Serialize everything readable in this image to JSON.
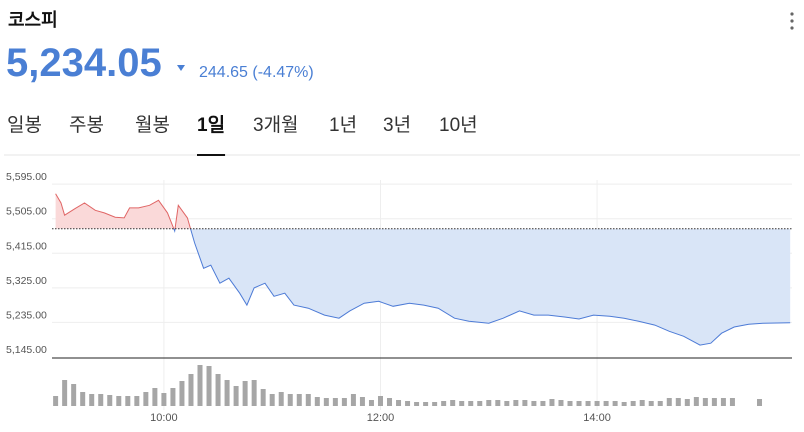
{
  "header": {
    "title": "코스피",
    "price": "5,234.05",
    "change": "244.65 (-4.47%)"
  },
  "tabs": {
    "items": [
      "일봉",
      "주봉",
      "월봉",
      "1일",
      "3개월",
      "1년",
      "3년",
      "10년"
    ],
    "active": 3
  },
  "chart_data": {
    "type": "line",
    "x": [
      "09:00",
      "09:03",
      "09:05",
      "09:11",
      "09:16",
      "09:22",
      "09:27",
      "09:33",
      "09:38",
      "09:41",
      "09:46",
      "09:52",
      "09:57",
      "10:02",
      "10:06",
      "10:08",
      "10:13",
      "10:17",
      "10:22",
      "10:26",
      "10:31",
      "10:36",
      "10:42",
      "10:46",
      "10:50",
      "10:56",
      "11:01",
      "11:07",
      "11:12",
      "11:20",
      "11:29",
      "11:37",
      "11:43",
      "11:51",
      "11:59",
      "12:07",
      "12:16",
      "12:24",
      "12:32",
      "12:41",
      "12:49",
      "13:00",
      "13:08",
      "13:17",
      "13:25",
      "13:33",
      "13:42",
      "13:50",
      "13:58",
      "14:07",
      "14:15",
      "14:23",
      "14:32",
      "14:40",
      "14:48",
      "14:57",
      "15:03",
      "15:09",
      "15:16",
      "15:24",
      "15:32",
      "15:47"
    ],
    "values": [
      5570,
      5546,
      5514,
      5532,
      5546,
      5527,
      5520,
      5509,
      5507,
      5533,
      5533,
      5540,
      5553,
      5520,
      5473,
      5540,
      5507,
      5442,
      5376,
      5384,
      5337,
      5350,
      5311,
      5280,
      5325,
      5337,
      5303,
      5311,
      5280,
      5272,
      5254,
      5246,
      5265,
      5285,
      5290,
      5277,
      5285,
      5280,
      5272,
      5246,
      5238,
      5233,
      5246,
      5265,
      5254,
      5254,
      5249,
      5244,
      5254,
      5251,
      5246,
      5238,
      5228,
      5212,
      5199,
      5176,
      5181,
      5207,
      5223,
      5230,
      5233,
      5234.05
    ],
    "reference": 5478.7,
    "up_color": "#e06666",
    "up_fill": "#fad9d9",
    "down_color": "#4d7bd6",
    "down_fill": "#d9e5f7",
    "xlim": [
      "08:58",
      "15:48"
    ],
    "xticks": [
      "10:00",
      "12:00",
      "14:00"
    ],
    "ylim": [
      5145,
      5650
    ],
    "yticks": [
      {
        "value": 5145,
        "label": "5,145.00"
      },
      {
        "value": 5235,
        "label": "5,235.00"
      },
      {
        "value": 5325,
        "label": "5,325.00"
      },
      {
        "value": 5415,
        "label": "5,415.00"
      },
      {
        "value": 5505,
        "label": "5,505.00"
      },
      {
        "value": 5595,
        "label": "5,595.00"
      }
    ],
    "grid": true,
    "volume": {
      "color": "#a6a6a6",
      "ylim": [
        0,
        45
      ],
      "x": [
        "09:00",
        "09:05",
        "09:10",
        "09:15",
        "09:20",
        "09:25",
        "09:30",
        "09:35",
        "09:40",
        "09:45",
        "09:50",
        "09:55",
        "10:00",
        "10:05",
        "10:10",
        "10:15",
        "10:20",
        "10:25",
        "10:30",
        "10:35",
        "10:40",
        "10:45",
        "10:50",
        "10:55",
        "11:00",
        "11:05",
        "11:10",
        "11:15",
        "11:20",
        "11:25",
        "11:30",
        "11:35",
        "11:40",
        "11:45",
        "11:50",
        "11:55",
        "12:00",
        "12:05",
        "12:10",
        "12:15",
        "12:20",
        "12:25",
        "12:30",
        "12:35",
        "12:40",
        "12:45",
        "12:50",
        "12:55",
        "13:00",
        "13:05",
        "13:10",
        "13:15",
        "13:20",
        "13:25",
        "13:30",
        "13:35",
        "13:40",
        "13:45",
        "13:50",
        "13:55",
        "14:00",
        "14:05",
        "14:10",
        "14:15",
        "14:20",
        "14:25",
        "14:30",
        "14:35",
        "14:40",
        "14:45",
        "14:50",
        "14:55",
        "15:00",
        "15:05",
        "15:10",
        "15:15",
        "15:30"
      ],
      "values": [
        10,
        26,
        22,
        14,
        12,
        12,
        11,
        10,
        10,
        10,
        14,
        18,
        13,
        18,
        25,
        32,
        41,
        40,
        32,
        26,
        20,
        25,
        26,
        17,
        12,
        14,
        12,
        12,
        12,
        9,
        8,
        8,
        8,
        12,
        9,
        6,
        10,
        8,
        6,
        5,
        4,
        4,
        4,
        5,
        6,
        5,
        5,
        5,
        6,
        6,
        5,
        6,
        6,
        5,
        5,
        7,
        6,
        5,
        5,
        5,
        5,
        5,
        5,
        4,
        5,
        6,
        5,
        5,
        8,
        8,
        7,
        9,
        8,
        8,
        8,
        8,
        7
      ]
    }
  }
}
